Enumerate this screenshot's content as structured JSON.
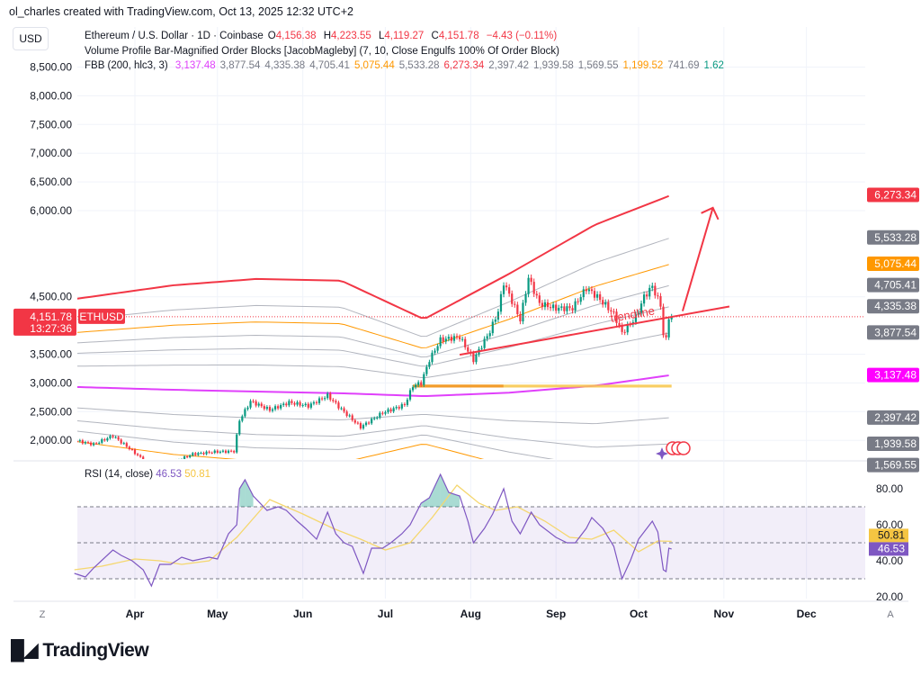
{
  "credit": "ol_charles created with TradingView.com, Oct 13, 2025 12:32 UTC+2",
  "currency_button": "USD",
  "symbol_legend": {
    "title": "Ethereum / U.S. Dollar · 1D · Coinbase",
    "o_label": "O",
    "o": "4,156.38",
    "h_label": "H",
    "h": "4,223.55",
    "l_label": "L",
    "l": "4,119.27",
    "c_label": "C",
    "c": "4,151.78",
    "change": "−4.43 (−0.11%)"
  },
  "indicator_legend_1": "Volume Profile Bar-Magnified Order Blocks [JacobMagleby] (7, 10, Close Engulfs 100% Of Order Block)",
  "fbb_legend": {
    "title": "FBB (200, hlc3, 3)",
    "values": [
      {
        "v": "3,137.48",
        "c": "mag"
      },
      {
        "v": "3,877.54",
        "c": "gray"
      },
      {
        "v": "4,335.38",
        "c": "gray"
      },
      {
        "v": "4,705.41",
        "c": "gray"
      },
      {
        "v": "5,075.44",
        "c": "org"
      },
      {
        "v": "5,533.28",
        "c": "gray"
      },
      {
        "v": "6,273.34",
        "c": "red"
      },
      {
        "v": "2,397.42",
        "c": "gray"
      },
      {
        "v": "1,939.58",
        "c": "gray"
      },
      {
        "v": "1,569.55",
        "c": "gray"
      },
      {
        "v": "1,199.52",
        "c": "org"
      },
      {
        "v": "741.69",
        "c": "gray"
      },
      {
        "v": "1.62",
        "c": "grn"
      }
    ]
  },
  "rsi_legend": {
    "title": "RSI (14, close)",
    "rsi": "46.53",
    "ma": "50.81"
  },
  "logo": "TradingView",
  "axis_buttons": {
    "left": "Z",
    "right": "A"
  },
  "colors": {
    "up": "#089981",
    "down": "#f23645",
    "basis": "#e040fb",
    "band": "#b2b5be",
    "band_orange": "#ff9800",
    "band_outer": "#f23645",
    "rsi": "#7e57c2",
    "rsi_ma": "#f5d76e"
  },
  "chart_data": [
    {
      "type": "candlestick",
      "symbol": "ETHUSD",
      "price_axis": {
        "ticks": [
          {
            "v": 8500,
            "label": "8,500.00"
          },
          {
            "v": 8000,
            "label": "8,000.00"
          },
          {
            "v": 7500,
            "label": "7,500.00"
          },
          {
            "v": 7000,
            "label": "7,000.00"
          },
          {
            "v": 6500,
            "label": "6,500.00"
          },
          {
            "v": 6000,
            "label": "6,000.00"
          },
          {
            "v": 4500,
            "label": "4,500.00"
          },
          {
            "v": 3500,
            "label": "3,500.00"
          },
          {
            "v": 3000,
            "label": "3,000.00"
          },
          {
            "v": 2500,
            "label": "2,500.00"
          },
          {
            "v": 2000,
            "label": "2,000.00"
          }
        ],
        "ylim": [
          1500,
          8800
        ]
      },
      "time_axis": [
        {
          "d": "2025-04-01",
          "label": "Apr"
        },
        {
          "d": "2025-05-01",
          "label": "May"
        },
        {
          "d": "2025-06-01",
          "label": "Jun"
        },
        {
          "d": "2025-07-01",
          "label": "Jul"
        },
        {
          "d": "2025-08-01",
          "label": "Aug"
        },
        {
          "d": "2025-09-01",
          "label": "Sep"
        },
        {
          "d": "2025-10-01",
          "label": "Oct"
        },
        {
          "d": "2025-11-01",
          "label": "Nov"
        },
        {
          "d": "2025-12-01",
          "label": "Dec"
        }
      ],
      "close_series": [
        [
          "2025-03-10",
          2000
        ],
        [
          "2025-03-17",
          1930
        ],
        [
          "2025-03-24",
          2080
        ],
        [
          "2025-03-31",
          1820
        ],
        [
          "2025-04-06",
          1580
        ],
        [
          "2025-04-09",
          1520
        ],
        [
          "2025-04-15",
          1620
        ],
        [
          "2025-04-22",
          1760
        ],
        [
          "2025-04-30",
          1800
        ],
        [
          "2025-05-07",
          1810
        ],
        [
          "2025-05-09",
          2350
        ],
        [
          "2025-05-13",
          2680
        ],
        [
          "2025-05-20",
          2530
        ],
        [
          "2025-05-27",
          2660
        ],
        [
          "2025-06-03",
          2600
        ],
        [
          "2025-06-10",
          2780
        ],
        [
          "2025-06-15",
          2540
        ],
        [
          "2025-06-22",
          2230
        ],
        [
          "2025-06-30",
          2480
        ],
        [
          "2025-07-08",
          2620
        ],
        [
          "2025-07-11",
          2950
        ],
        [
          "2025-07-14",
          3000
        ],
        [
          "2025-07-17",
          3400
        ],
        [
          "2025-07-21",
          3750
        ],
        [
          "2025-07-28",
          3800
        ],
        [
          "2025-08-02",
          3400
        ],
        [
          "2025-08-08",
          3900
        ],
        [
          "2025-08-11",
          4250
        ],
        [
          "2025-08-13",
          4750
        ],
        [
          "2025-08-19",
          4100
        ],
        [
          "2025-08-22",
          4830
        ],
        [
          "2025-08-26",
          4380
        ],
        [
          "2025-09-01",
          4300
        ],
        [
          "2025-09-07",
          4300
        ],
        [
          "2025-09-12",
          4650
        ],
        [
          "2025-09-16",
          4500
        ],
        [
          "2025-09-22",
          4200
        ],
        [
          "2025-09-25",
          3870
        ],
        [
          "2025-09-30",
          4140
        ],
        [
          "2025-10-03",
          4500
        ],
        [
          "2025-10-06",
          4680
        ],
        [
          "2025-10-09",
          4350
        ],
        [
          "2025-10-10",
          3850
        ],
        [
          "2025-10-11",
          3750
        ],
        [
          "2025-10-12",
          4150
        ],
        [
          "2025-10-13",
          4151.78
        ]
      ],
      "fbb": {
        "dates": [
          "2025-03-10",
          "2025-04-15",
          "2025-05-15",
          "2025-06-15",
          "2025-07-15",
          "2025-08-15",
          "2025-09-15",
          "2025-10-13"
        ],
        "basis": [
          2930,
          2880,
          2850,
          2820,
          2770,
          2830,
          2950,
          3137.48
        ],
        "upper_1": [
          4460,
          4700,
          4810,
          4780,
          4110,
          4900,
          5750,
          6273.34
        ]
      },
      "price_labels": [
        {
          "v": 6273.34,
          "label": "6,273.34",
          "c": "#f23645"
        },
        {
          "v": 5533.28,
          "label": "5,533.28",
          "c": "#787b86"
        },
        {
          "v": 5075.44,
          "label": "5,075.44",
          "c": "#ff9800"
        },
        {
          "v": 4705.41,
          "label": "4,705.41",
          "c": "#787b86"
        },
        {
          "v": 4335.38,
          "label": "4,335.38",
          "c": "#787b86"
        },
        {
          "v": 3877.54,
          "label": "3,877.54",
          "c": "#787b86"
        },
        {
          "v": 3137.48,
          "label": "3,137.48",
          "c": "#ff00ff"
        },
        {
          "v": 2397.42,
          "label": "2,397.42",
          "c": "#787b86"
        },
        {
          "v": 1939.58,
          "label": "1,939.58",
          "c": "#787b86"
        },
        {
          "v": 1569.55,
          "label": "1,569.55",
          "c": "#787b86"
        }
      ],
      "last_price": {
        "v": 4151.78,
        "label": "4,151.78",
        "countdown": "13:27:36",
        "tag": "ETHUSD"
      },
      "order_block": {
        "from": "2025-07-11",
        "to": "2025-10-13",
        "top": 2970,
        "bottom": 2920
      },
      "trendline": {
        "label": "trendline",
        "p1": [
          "2025-07-28",
          3490
        ],
        "p2": [
          "2025-11-03",
          4330
        ]
      },
      "arrow": {
        "p1": [
          "2025-10-17",
          4250
        ],
        "p2": [
          "2025-10-28",
          6050
        ]
      }
    },
    {
      "type": "line",
      "title": "RSI (14, close)",
      "ylim": [
        17,
        92
      ],
      "ticks": [
        {
          "v": 80,
          "label": "80.00"
        },
        {
          "v": 60,
          "label": "60.00"
        },
        {
          "v": 40,
          "label": "40.00"
        },
        {
          "v": 20,
          "label": "20.00"
        }
      ],
      "bands": [
        30,
        50,
        70
      ],
      "series": [
        {
          "name": "RSI",
          "last": "46.53",
          "values": [
            [
              "2025-03-10",
              33
            ],
            [
              "2025-03-14",
              31
            ],
            [
              "2025-03-17",
              36
            ],
            [
              "2025-03-24",
              46
            ],
            [
              "2025-03-27",
              43
            ],
            [
              "2025-03-31",
              40
            ],
            [
              "2025-04-04",
              35
            ],
            [
              "2025-04-07",
              26
            ],
            [
              "2025-04-10",
              38
            ],
            [
              "2025-04-14",
              38
            ],
            [
              "2025-04-18",
              42
            ],
            [
              "2025-04-22",
              40
            ],
            [
              "2025-04-28",
              42
            ],
            [
              "2025-05-01",
              41
            ],
            [
              "2025-05-05",
              55
            ],
            [
              "2025-05-08",
              60
            ],
            [
              "2025-05-09",
              80
            ],
            [
              "2025-05-11",
              85
            ],
            [
              "2025-05-14",
              76
            ],
            [
              "2025-05-19",
              68
            ],
            [
              "2025-05-23",
              70
            ],
            [
              "2025-05-26",
              68
            ],
            [
              "2025-05-30",
              62
            ],
            [
              "2025-06-02",
              58
            ],
            [
              "2025-06-06",
              52
            ],
            [
              "2025-06-10",
              67
            ],
            [
              "2025-06-13",
              55
            ],
            [
              "2025-06-16",
              50
            ],
            [
              "2025-06-19",
              48
            ],
            [
              "2025-06-23",
              33
            ],
            [
              "2025-06-26",
              47
            ],
            [
              "2025-06-30",
              47
            ],
            [
              "2025-07-03",
              50
            ],
            [
              "2025-07-07",
              55
            ],
            [
              "2025-07-10",
              60
            ],
            [
              "2025-07-14",
              72
            ],
            [
              "2025-07-17",
              75
            ],
            [
              "2025-07-21",
              88
            ],
            [
              "2025-07-24",
              78
            ],
            [
              "2025-07-28",
              76
            ],
            [
              "2025-07-31",
              62
            ],
            [
              "2025-08-02",
              50
            ],
            [
              "2025-08-06",
              58
            ],
            [
              "2025-08-09",
              66
            ],
            [
              "2025-08-13",
              80
            ],
            [
              "2025-08-16",
              62
            ],
            [
              "2025-08-19",
              55
            ],
            [
              "2025-08-23",
              67
            ],
            [
              "2025-08-26",
              60
            ],
            [
              "2025-09-01",
              53
            ],
            [
              "2025-09-05",
              50
            ],
            [
              "2025-09-08",
              50
            ],
            [
              "2025-09-12",
              58
            ],
            [
              "2025-09-14",
              64
            ],
            [
              "2025-09-18",
              58
            ],
            [
              "2025-09-22",
              48
            ],
            [
              "2025-09-25",
              30
            ],
            [
              "2025-09-28",
              40
            ],
            [
              "2025-10-01",
              52
            ],
            [
              "2025-10-03",
              56
            ],
            [
              "2025-10-06",
              62
            ],
            [
              "2025-10-08",
              56
            ],
            [
              "2025-10-10",
              35
            ],
            [
              "2025-10-11",
              34
            ],
            [
              "2025-10-12",
              47
            ],
            [
              "2025-10-13",
              46.53
            ]
          ]
        },
        {
          "name": "RSI-based MA",
          "last": "50.81",
          "values": [
            [
              "2025-03-10",
              35
            ],
            [
              "2025-03-20",
              37
            ],
            [
              "2025-04-01",
              41
            ],
            [
              "2025-04-10",
              40
            ],
            [
              "2025-04-18",
              38
            ],
            [
              "2025-04-28",
              40
            ],
            [
              "2025-05-08",
              53
            ],
            [
              "2025-05-20",
              74
            ],
            [
              "2025-06-01",
              66
            ],
            [
              "2025-06-12",
              58
            ],
            [
              "2025-06-22",
              52
            ],
            [
              "2025-07-01",
              46
            ],
            [
              "2025-07-10",
              50
            ],
            [
              "2025-07-18",
              64
            ],
            [
              "2025-07-27",
              82
            ],
            [
              "2025-08-04",
              72
            ],
            [
              "2025-08-10",
              68
            ],
            [
              "2025-08-18",
              70
            ],
            [
              "2025-08-28",
              62
            ],
            [
              "2025-09-06",
              53
            ],
            [
              "2025-09-14",
              52
            ],
            [
              "2025-09-22",
              57
            ],
            [
              "2025-10-01",
              45
            ],
            [
              "2025-10-08",
              51
            ],
            [
              "2025-10-13",
              50.81
            ]
          ]
        }
      ]
    }
  ]
}
